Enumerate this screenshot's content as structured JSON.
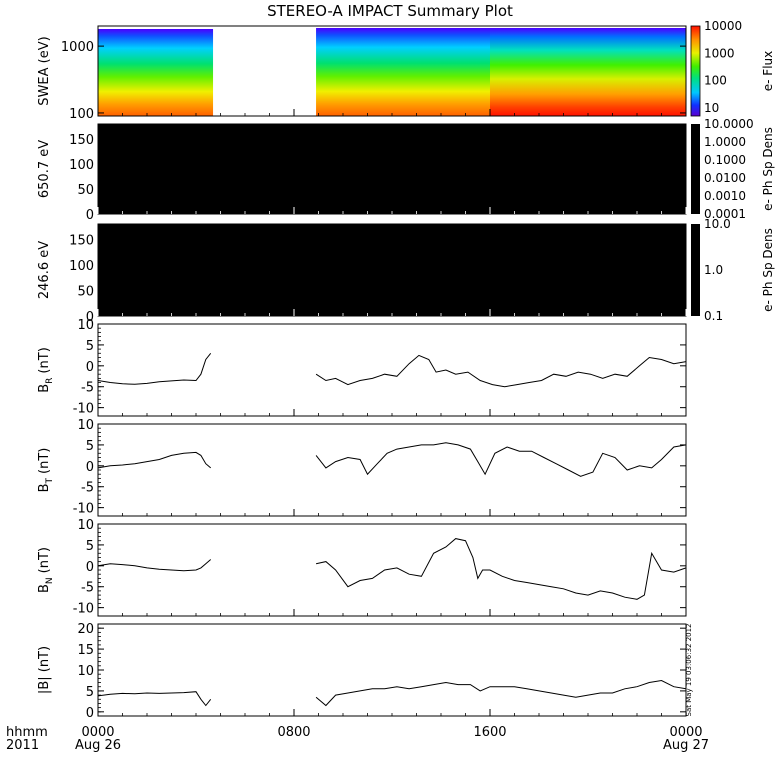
{
  "title": "STEREO-A IMPACT Summary Plot",
  "timestamp": "Sat May 19 03:06:32 2012",
  "time_axis": {
    "corner_labels": [
      "hhmm",
      "2011"
    ],
    "ticks": [
      {
        "hours": 0,
        "label": "0000",
        "date": "Aug 26"
      },
      {
        "hours": 8,
        "label": "0800",
        "date": ""
      },
      {
        "hours": 16,
        "label": "1600",
        "date": ""
      },
      {
        "hours": 24,
        "label": "0000",
        "date": "Aug 27"
      }
    ]
  },
  "chart_data": [
    {
      "type": "heatmap",
      "ylabel": "SWEA (eV)",
      "yscale": "log",
      "ylim": [
        90,
        2000
      ],
      "yticks": [
        {
          "v": 100,
          "label": "100"
        },
        {
          "v": 1000,
          "label": "1000"
        }
      ],
      "data_gap_hours": [
        4.7,
        8.9
      ],
      "colorbar": {
        "label": "e- Flux",
        "scale": "log",
        "range": [
          5,
          10000
        ],
        "ticks": [
          {
            "v": 10,
            "label": "10"
          },
          {
            "v": 100,
            "label": "100"
          },
          {
            "v": 1000,
            "label": "1000"
          },
          {
            "v": 10000,
            "label": "10000"
          }
        ]
      }
    },
    {
      "type": "heatmap",
      "ylabel": "650.7 eV",
      "ylim": [
        0,
        180
      ],
      "yticks": [
        {
          "v": 0,
          "label": "0"
        },
        {
          "v": 50,
          "label": "50"
        },
        {
          "v": 100,
          "label": "100"
        },
        {
          "v": 150,
          "label": "150"
        }
      ],
      "fill": "#000000",
      "colorbar": {
        "label": "e- Ph Sp Dens",
        "scale": "log",
        "range": [
          0.0001,
          10
        ],
        "ticks": [
          {
            "v": 10,
            "label": "10.0000"
          },
          {
            "v": 1,
            "label": "1.0000"
          },
          {
            "v": 0.1,
            "label": "0.1000"
          },
          {
            "v": 0.01,
            "label": "0.0100"
          },
          {
            "v": 0.001,
            "label": "0.0010"
          },
          {
            "v": 0.0001,
            "label": "0.0001"
          }
        ]
      }
    },
    {
      "type": "heatmap",
      "ylabel": "246.6 eV",
      "ylim": [
        0,
        180
      ],
      "yticks": [
        {
          "v": 0,
          "label": "0"
        },
        {
          "v": 50,
          "label": "50"
        },
        {
          "v": 100,
          "label": "100"
        },
        {
          "v": 150,
          "label": "150"
        }
      ],
      "fill": "#000000",
      "colorbar": {
        "label": "e- Ph Sp Dens",
        "scale": "log",
        "range": [
          0.1,
          10
        ],
        "ticks": [
          {
            "v": 10,
            "label": "10.0"
          },
          {
            "v": 1,
            "label": "1.0"
          },
          {
            "v": 0.1,
            "label": "0.1"
          }
        ]
      }
    },
    {
      "type": "line",
      "ylabel": "B",
      "ylabel_sub": "R",
      "ylabel_unit": "(nT)",
      "ylim": [
        -12,
        10
      ],
      "yticks": [
        {
          "v": 10,
          "label": "10"
        },
        {
          "v": 5,
          "label": "5"
        },
        {
          "v": 0,
          "label": "0"
        },
        {
          "v": -5,
          "label": "-5"
        },
        {
          "v": -10,
          "label": "-10"
        }
      ],
      "series": [
        {
          "x": [
            0,
            0.5,
            1,
            1.5,
            2,
            2.5,
            3,
            3.5,
            4,
            4.2,
            4.4,
            4.6
          ],
          "y": [
            -3.5,
            -4,
            -4.3,
            -4.4,
            -4.2,
            -3.8,
            -3.6,
            -3.4,
            -3.5,
            -2,
            1.5,
            3
          ]
        },
        {
          "x": [
            8.9,
            9.3,
            9.7,
            10.2,
            10.7,
            11.2,
            11.7,
            12.2,
            12.7,
            13.1,
            13.5,
            13.8,
            14.2,
            14.6,
            15.1,
            15.6,
            16.1,
            16.6,
            17.1,
            17.6,
            18.1,
            18.6,
            19.1,
            19.6,
            20.1,
            20.6,
            21.1,
            21.6,
            22.1,
            22.5,
            23,
            23.5,
            24
          ],
          "y": [
            -2,
            -3.5,
            -3,
            -4.5,
            -3.5,
            -3,
            -2,
            -2.5,
            0.5,
            2.5,
            1.5,
            -1.5,
            -1,
            -2,
            -1.5,
            -3.5,
            -4.5,
            -5,
            -4.5,
            -4,
            -3.5,
            -2,
            -2.5,
            -1.5,
            -2,
            -3,
            -2,
            -2.5,
            0,
            2,
            1.5,
            0.5,
            1
          ]
        }
      ]
    },
    {
      "type": "line",
      "ylabel": "B",
      "ylabel_sub": "T",
      "ylabel_unit": "(nT)",
      "ylim": [
        -12,
        10
      ],
      "yticks": [
        {
          "v": 10,
          "label": "10"
        },
        {
          "v": 5,
          "label": "5"
        },
        {
          "v": 0,
          "label": "0"
        },
        {
          "v": -5,
          "label": "-5"
        },
        {
          "v": -10,
          "label": "-10"
        }
      ],
      "series": [
        {
          "x": [
            0,
            0.5,
            1,
            1.5,
            2,
            2.5,
            3,
            3.5,
            4,
            4.2,
            4.4,
            4.6
          ],
          "y": [
            -0.5,
            0,
            0.2,
            0.5,
            1,
            1.5,
            2.5,
            3,
            3.2,
            2.5,
            0.5,
            -0.5
          ]
        },
        {
          "x": [
            8.9,
            9.3,
            9.7,
            10.2,
            10.7,
            11,
            11.4,
            11.8,
            12.2,
            12.7,
            13.2,
            13.7,
            14.2,
            14.7,
            15.2,
            15.5,
            15.8,
            16.2,
            16.7,
            17.2,
            17.7,
            18.2,
            18.7,
            19.2,
            19.7,
            20.2,
            20.6,
            21.1,
            21.6,
            22.1,
            22.6,
            23,
            23.5,
            24
          ],
          "y": [
            2.5,
            -0.5,
            1,
            2,
            1.5,
            -2,
            0.5,
            3,
            4,
            4.5,
            5,
            5,
            5.5,
            5,
            4,
            1,
            -2,
            3,
            4.5,
            3.5,
            3.5,
            2,
            0.5,
            -1,
            -2.5,
            -1.5,
            3,
            2,
            -1,
            0,
            -0.5,
            1.5,
            4.5,
            5
          ]
        }
      ]
    },
    {
      "type": "line",
      "ylabel": "B",
      "ylabel_sub": "N",
      "ylabel_unit": "(nT)",
      "ylim": [
        -12,
        10
      ],
      "yticks": [
        {
          "v": 10,
          "label": "10"
        },
        {
          "v": 5,
          "label": "5"
        },
        {
          "v": 0,
          "label": "0"
        },
        {
          "v": -5,
          "label": "-5"
        },
        {
          "v": -10,
          "label": "-10"
        }
      ],
      "series": [
        {
          "x": [
            0,
            0.5,
            1,
            1.5,
            2,
            2.5,
            3,
            3.5,
            4,
            4.2,
            4.4,
            4.6
          ],
          "y": [
            0,
            0.5,
            0.3,
            0,
            -0.5,
            -0.8,
            -1,
            -1.2,
            -1,
            -0.5,
            0.5,
            1.5
          ]
        },
        {
          "x": [
            8.9,
            9.3,
            9.7,
            10.2,
            10.7,
            11.2,
            11.7,
            12.2,
            12.7,
            13.2,
            13.7,
            14.2,
            14.6,
            15,
            15.3,
            15.5,
            15.7,
            16,
            16.5,
            17,
            17.5,
            18,
            18.5,
            19,
            19.5,
            20,
            20.5,
            21,
            21.5,
            22,
            22.3,
            22.6,
            23,
            23.5,
            24
          ],
          "y": [
            0.5,
            1,
            -1,
            -5,
            -3.5,
            -3,
            -1,
            -0.5,
            -2,
            -2.5,
            3,
            4.5,
            6.5,
            6,
            2,
            -3,
            -1,
            -1,
            -2.5,
            -3.5,
            -4,
            -4.5,
            -5,
            -5.5,
            -6.5,
            -7,
            -6,
            -6.5,
            -7.5,
            -8,
            -7,
            3,
            -1,
            -1.5,
            -0.5
          ]
        }
      ]
    },
    {
      "type": "line",
      "ylabel": "|B| (nT)",
      "ylim": [
        -1,
        21
      ],
      "yticks": [
        {
          "v": 20,
          "label": "20"
        },
        {
          "v": 15,
          "label": "15"
        },
        {
          "v": 10,
          "label": "10"
        },
        {
          "v": 5,
          "label": "5"
        },
        {
          "v": 0,
          "label": "0"
        }
      ],
      "series": [
        {
          "x": [
            0,
            0.5,
            1,
            1.5,
            2,
            2.5,
            3,
            3.5,
            4,
            4.2,
            4.4,
            4.6
          ],
          "y": [
            3.8,
            4.2,
            4.4,
            4.3,
            4.5,
            4.4,
            4.5,
            4.6,
            4.8,
            3,
            1.5,
            3
          ]
        },
        {
          "x": [
            8.9,
            9.3,
            9.7,
            10.2,
            10.7,
            11.2,
            11.7,
            12.2,
            12.7,
            13.2,
            13.7,
            14.2,
            14.7,
            15.2,
            15.6,
            16,
            16.5,
            17,
            17.5,
            18,
            18.5,
            19,
            19.5,
            20,
            20.5,
            21,
            21.5,
            22,
            22.5,
            23,
            23.5,
            24
          ],
          "y": [
            3.5,
            1.5,
            4,
            4.5,
            5,
            5.5,
            5.5,
            6,
            5.5,
            6,
            6.5,
            7,
            6.5,
            6.5,
            5,
            6,
            6,
            6,
            5.5,
            5,
            4.5,
            4,
            3.5,
            4,
            4.5,
            4.5,
            5.5,
            6,
            7,
            7.5,
            6,
            5.5
          ]
        }
      ]
    }
  ]
}
